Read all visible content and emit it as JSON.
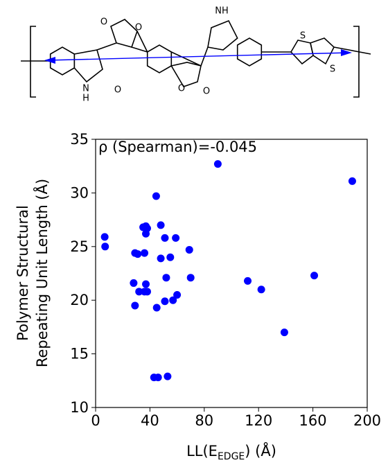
{
  "structure": {
    "atoms": [
      "O",
      "O",
      "NH",
      "N",
      "H",
      "O",
      "O",
      "O",
      "S",
      "S"
    ]
  },
  "chart_data": {
    "type": "scatter",
    "annotation": "ρ (Spearman)=-0.045",
    "xlabel": [
      "LL(E",
      "EDGE",
      ") (Å)"
    ],
    "ylabel": [
      "Polymer Structural",
      "Repeating Unit Length (Å)"
    ],
    "color": "#0000ff",
    "xlim": [
      0,
      200
    ],
    "xticks": [
      0,
      40,
      80,
      120,
      160,
      200
    ],
    "ylim": [
      10,
      35
    ],
    "yticks": [
      10,
      15,
      20,
      25,
      30,
      35
    ],
    "x": [
      6.7,
      7,
      189,
      90,
      44.6,
      35,
      37,
      38,
      37,
      48,
      51,
      59,
      69,
      29,
      31,
      36,
      48,
      55,
      28,
      37,
      52,
      70,
      29,
      32,
      36,
      38,
      51,
      57,
      60,
      45,
      112,
      122,
      161,
      139,
      43,
      46,
      53
    ],
    "y": [
      25.9,
      25.0,
      31.1,
      32.7,
      29.7,
      26.8,
      26.9,
      26.7,
      26.2,
      27.0,
      25.8,
      25.8,
      24.7,
      24.4,
      24.3,
      24.4,
      23.9,
      24.0,
      21.6,
      21.5,
      22.1,
      22.1,
      19.5,
      20.8,
      20.8,
      20.8,
      19.9,
      20.0,
      20.5,
      19.3,
      21.8,
      21.0,
      22.3,
      17.0,
      12.8,
      12.8,
      12.9
    ]
  }
}
